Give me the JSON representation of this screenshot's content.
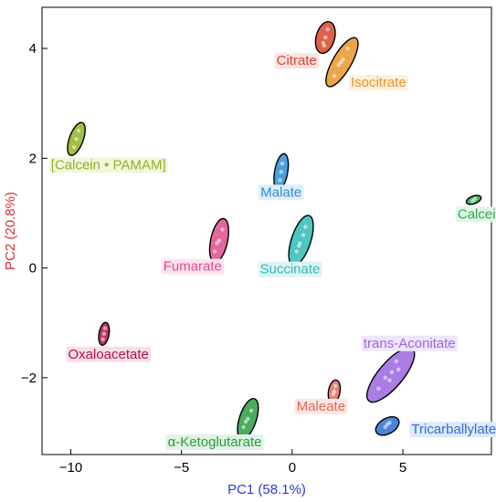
{
  "chart_data": {
    "type": "scatter",
    "title": "",
    "xlabel": "PC1 (58.1%)",
    "ylabel": "PC2 (20.8%)",
    "xlabel_color": "#2a3bd6",
    "ylabel_color": "#d63030",
    "xlim": [
      -11.3,
      9.0
    ],
    "ylim": [
      -3.4,
      4.75
    ],
    "xticks": [
      -10,
      -5,
      0,
      5
    ],
    "yticks": [
      -2,
      0,
      2,
      4
    ],
    "grid": false,
    "legend": "none",
    "groups": [
      {
        "name": "Citrate",
        "color": "#d9452b",
        "center": [
          1.5,
          4.2
        ],
        "rx": 0.42,
        "ry": 0.24,
        "angle": 75,
        "points": [
          [
            1.4,
            4.1
          ],
          [
            1.5,
            4.2
          ],
          [
            1.6,
            4.35
          ],
          [
            1.45,
            4.05
          ]
        ],
        "label": [
          0.2,
          3.7
        ],
        "label_color": "#d9452b",
        "bg": "#fce4e1"
      },
      {
        "name": "Isocitrate",
        "color": "#e8962b",
        "center": [
          2.25,
          3.75
        ],
        "rx": 0.72,
        "ry": 0.24,
        "angle": 60,
        "points": [
          [
            1.9,
            3.5
          ],
          [
            2.1,
            3.7
          ],
          [
            2.3,
            3.8
          ],
          [
            2.5,
            4.0
          ],
          [
            2.2,
            3.75
          ]
        ],
        "label": [
          3.9,
          3.3
        ],
        "label_color": "#e8962b",
        "bg": "#fdf0dc"
      },
      {
        "name": "[Calcein • PAMAM]",
        "color": "#8fb321",
        "center": [
          -9.75,
          2.35
        ],
        "rx": 0.45,
        "ry": 0.18,
        "angle": 70,
        "points": [
          [
            -9.85,
            2.2
          ],
          [
            -9.75,
            2.35
          ],
          [
            -9.65,
            2.5
          ]
        ],
        "label": [
          -8.3,
          1.8
        ],
        "label_color": "#8fb321",
        "bg": "#f1f6dd"
      },
      {
        "name": "Malate",
        "color": "#2a8fd6",
        "center": [
          -0.5,
          1.75
        ],
        "rx": 0.48,
        "ry": 0.17,
        "angle": 80,
        "points": [
          [
            -0.55,
            1.6
          ],
          [
            -0.5,
            1.75
          ],
          [
            -0.45,
            1.9
          ]
        ],
        "label": [
          -0.5,
          1.3
        ],
        "label_color": "#2a8fd6",
        "bg": "#dfeefa"
      },
      {
        "name": "Calcein",
        "color": "#34a853",
        "center": [
          8.2,
          1.24
        ],
        "rx": 0.2,
        "ry": 0.1,
        "angle": 20,
        "points": [
          [
            8.15,
            1.22
          ],
          [
            8.25,
            1.26
          ]
        ],
        "label": [
          8.5,
          0.9
        ],
        "label_color": "#34a853",
        "bg": "#e3f5e8"
      },
      {
        "name": "Fumarate",
        "color": "#e04b8c",
        "center": [
          -3.3,
          0.5
        ],
        "rx": 0.58,
        "ry": 0.22,
        "angle": 78,
        "points": [
          [
            -3.5,
            0.3
          ],
          [
            -3.3,
            0.5
          ],
          [
            -3.15,
            0.7
          ],
          [
            -3.4,
            0.45
          ]
        ],
        "label": [
          -4.5,
          -0.05
        ],
        "label_color": "#e04b8c",
        "bg": "#fce3ee"
      },
      {
        "name": "Succinate",
        "color": "#2fbcb8",
        "center": [
          0.4,
          0.5
        ],
        "rx": 0.68,
        "ry": 0.25,
        "angle": 72,
        "points": [
          [
            0.2,
            0.3
          ],
          [
            0.35,
            0.45
          ],
          [
            0.5,
            0.6
          ],
          [
            0.6,
            0.75
          ],
          [
            0.3,
            0.4
          ]
        ],
        "label": [
          -0.1,
          -0.1
        ],
        "label_color": "#2fbcb8",
        "bg": "#def4f3"
      },
      {
        "name": "Oxaloacetate",
        "color": "#b0124a",
        "center": [
          -8.5,
          -1.2
        ],
        "rx": 0.3,
        "ry": 0.13,
        "angle": 80,
        "points": [
          [
            -8.55,
            -1.3
          ],
          [
            -8.5,
            -1.2
          ],
          [
            -8.45,
            -1.1
          ]
        ],
        "label": [
          -8.3,
          -1.65
        ],
        "label_color": "#b0124a",
        "bg": "#f7dfe7"
      },
      {
        "name": "trans-Aconitate",
        "color": "#9b66e0",
        "center": [
          4.45,
          -1.95
        ],
        "rx": 0.88,
        "ry": 0.32,
        "angle": 50,
        "points": [
          [
            3.9,
            -2.2
          ],
          [
            4.2,
            -2.0
          ],
          [
            4.5,
            -1.9
          ],
          [
            4.7,
            -1.7
          ],
          [
            4.4,
            -2.05
          ],
          [
            4.8,
            -1.85
          ]
        ],
        "label": [
          5.3,
          -1.45
        ],
        "label_color": "#9b66e0",
        "bg": "#efe6fb"
      },
      {
        "name": "Maleate",
        "color": "#e06a5b",
        "center": [
          1.9,
          -2.25
        ],
        "rx": 0.3,
        "ry": 0.15,
        "angle": 80,
        "points": [
          [
            1.85,
            -2.3
          ],
          [
            1.9,
            -2.25
          ],
          [
            1.95,
            -2.15
          ]
        ],
        "label": [
          1.3,
          -2.6
        ],
        "label_color": "#e06a5b",
        "bg": "#fce6e3"
      },
      {
        "name": "Tricarballylate",
        "color": "#2a6fd6",
        "center": [
          4.3,
          -2.88
        ],
        "rx": 0.33,
        "ry": 0.2,
        "angle": 30,
        "points": [
          [
            4.2,
            -2.9
          ],
          [
            4.3,
            -2.85
          ],
          [
            4.4,
            -2.82
          ]
        ],
        "label": [
          7.3,
          -3.02
        ],
        "label_color": "#2a6fd6",
        "bg": "#dfe9fa"
      },
      {
        "name": "α-Ketoglutarate",
        "color": "#2a9d3f",
        "center": [
          -2.0,
          -2.75
        ],
        "rx": 0.55,
        "ry": 0.22,
        "angle": 72,
        "points": [
          [
            -2.2,
            -2.9
          ],
          [
            -2.0,
            -2.75
          ],
          [
            -1.85,
            -2.6
          ],
          [
            -2.1,
            -2.8
          ]
        ],
        "label": [
          -3.5,
          -3.25
        ],
        "label_color": "#2a9d3f",
        "bg": "#e1f3e5"
      }
    ]
  }
}
